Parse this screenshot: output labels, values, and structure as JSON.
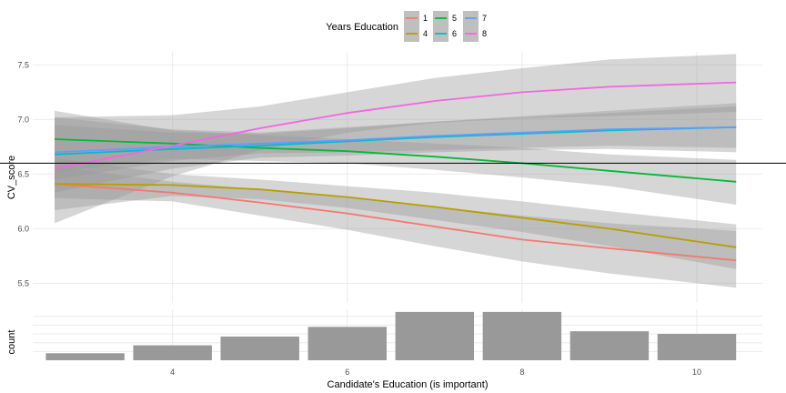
{
  "chart_data": {
    "type": "line",
    "legend": {
      "title": "Years Education",
      "placement": "top-center",
      "entries": [
        "1",
        "4",
        "5",
        "6",
        "7",
        "8"
      ]
    },
    "main_panel": {
      "ylabel": "CV_score",
      "ylim": [
        5.32,
        7.62
      ],
      "yticks": [
        "5.5",
        "6.0",
        "6.5",
        "7.0",
        "7.5"
      ],
      "reference_line_y": 6.6,
      "grid": true,
      "series": [
        {
          "name": "1",
          "color": "#F8766D",
          "x": [
            2.65,
            4,
            5,
            6,
            7,
            8,
            9,
            10.45
          ],
          "y": [
            6.41,
            6.33,
            6.24,
            6.14,
            6.02,
            5.9,
            5.82,
            5.71
          ],
          "band_low": [
            6.28,
            6.25,
            6.12,
            5.99,
            5.84,
            5.7,
            5.59,
            5.46
          ],
          "band_high": [
            6.57,
            6.43,
            6.36,
            6.29,
            6.2,
            6.12,
            6.05,
            5.98
          ]
        },
        {
          "name": "4",
          "color": "#B79F00",
          "x": [
            2.65,
            4,
            5,
            6,
            7,
            8,
            9,
            10.45
          ],
          "y": [
            6.41,
            6.4,
            6.36,
            6.29,
            6.2,
            6.1,
            6.0,
            5.83
          ],
          "band_low": [
            6.17,
            6.3,
            6.27,
            6.19,
            6.08,
            5.97,
            5.84,
            5.63
          ],
          "band_high": [
            6.65,
            6.5,
            6.45,
            6.39,
            6.33,
            6.25,
            6.16,
            6.04
          ]
        },
        {
          "name": "5",
          "color": "#00BA38",
          "x": [
            2.65,
            4,
            5,
            6,
            7,
            8,
            9,
            10.45
          ],
          "y": [
            6.82,
            6.78,
            6.74,
            6.71,
            6.66,
            6.6,
            6.53,
            6.43
          ],
          "band_low": [
            6.52,
            6.64,
            6.62,
            6.6,
            6.54,
            6.47,
            6.39,
            6.22
          ],
          "band_high": [
            7.08,
            6.9,
            6.86,
            6.82,
            6.78,
            6.74,
            6.68,
            6.63
          ]
        },
        {
          "name": "6",
          "color": "#00BFC4",
          "x": [
            2.65,
            4,
            5,
            6,
            7,
            8,
            9,
            10.45
          ],
          "y": [
            6.68,
            6.73,
            6.76,
            6.8,
            6.84,
            6.87,
            6.9,
            6.93
          ],
          "band_low": [
            6.33,
            6.55,
            6.65,
            6.67,
            6.7,
            6.72,
            6.73,
            6.7
          ],
          "band_high": [
            7.02,
            6.91,
            6.88,
            6.93,
            6.98,
            7.03,
            7.08,
            7.15
          ]
        },
        {
          "name": "7",
          "color": "#619CFF",
          "x": [
            2.65,
            4,
            5,
            6,
            7,
            8,
            9,
            10.45
          ],
          "y": [
            6.7,
            6.75,
            6.78,
            6.81,
            6.85,
            6.88,
            6.91,
            6.93
          ],
          "band_low": [
            6.45,
            6.62,
            6.69,
            6.7,
            6.72,
            6.74,
            6.76,
            6.74
          ],
          "band_high": [
            6.95,
            6.88,
            6.87,
            6.92,
            6.98,
            7.02,
            7.06,
            7.12
          ]
        },
        {
          "name": "8",
          "color": "#F564E3",
          "x": [
            2.65,
            4,
            5,
            6,
            7,
            8,
            9,
            10.45
          ],
          "y": [
            6.55,
            6.76,
            6.92,
            7.06,
            7.17,
            7.25,
            7.3,
            7.34
          ],
          "band_low": [
            6.05,
            6.48,
            6.72,
            6.88,
            6.97,
            7.01,
            7.03,
            7.07
          ],
          "band_high": [
            7.02,
            7.04,
            7.12,
            7.25,
            7.38,
            7.47,
            7.55,
            7.6
          ]
        }
      ]
    },
    "count_panel": {
      "type": "bar",
      "ylabel": "count",
      "bar_color": "#999999",
      "x": [
        3,
        4,
        5,
        6,
        7,
        8,
        9,
        10
      ],
      "values": [
        8,
        17,
        27,
        38,
        55,
        55,
        33,
        30
      ],
      "ylim": [
        0,
        58
      ]
    },
    "xaxis": {
      "label": "Candidate's Education (is important)",
      "xlim": [
        2.4,
        10.75
      ],
      "ticks": [
        "4",
        "6",
        "8",
        "10"
      ]
    }
  }
}
